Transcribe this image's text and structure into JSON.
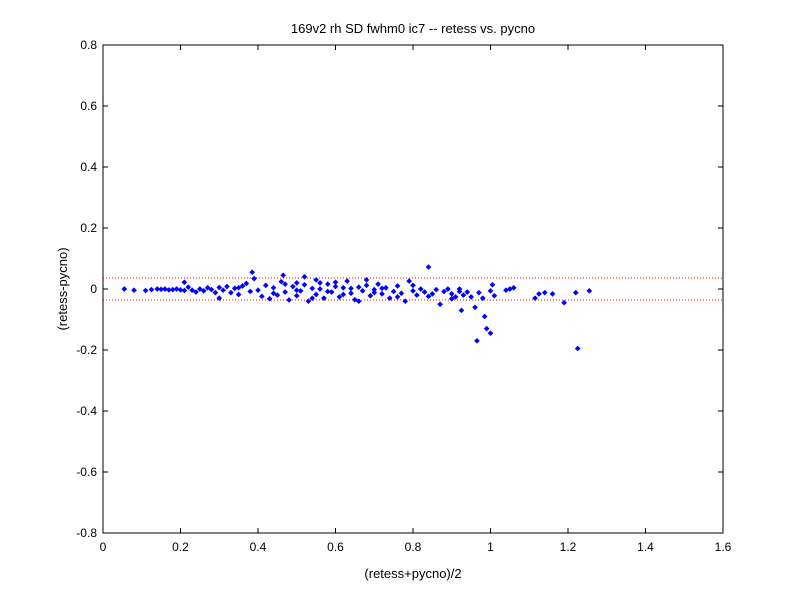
{
  "chart_data": {
    "type": "scatter",
    "title": "169v2 rh SD fwhm0 ic7 -- retess vs. pycno",
    "xlabel": "(retess+pycno)/2",
    "ylabel": "(retess-pycno)",
    "xlim": [
      0,
      1.6
    ],
    "ylim": [
      -0.8,
      0.8
    ],
    "xticks": [
      0,
      0.2,
      0.4,
      0.6,
      0.8,
      1,
      1.2,
      1.4,
      1.6
    ],
    "yticks": [
      -0.8,
      -0.6,
      -0.4,
      -0.2,
      0,
      0.2,
      0.4,
      0.6,
      0.8
    ],
    "xtick_labels": [
      "0",
      "0.2",
      "0.4",
      "0.6",
      "0.8",
      "1",
      "1.2",
      "1.4",
      "1.6"
    ],
    "ytick_labels": [
      "-0.8",
      "-0.6",
      "-0.4",
      "-0.2",
      "0",
      "0.2",
      "0.4",
      "0.6",
      "0.8"
    ],
    "grid": false,
    "marker_color": "#0000ff",
    "reference_lines": [
      {
        "y": 0.036,
        "color": "#ff0000",
        "style": "dotted"
      },
      {
        "y": -0.036,
        "color": "#ff0000",
        "style": "dotted"
      }
    ],
    "points": [
      [
        0.055,
        0.0
      ],
      [
        0.08,
        -0.004
      ],
      [
        0.11,
        -0.005
      ],
      [
        0.125,
        -0.002
      ],
      [
        0.14,
        0.0
      ],
      [
        0.15,
        -0.001
      ],
      [
        0.16,
        0.0
      ],
      [
        0.17,
        -0.003
      ],
      [
        0.18,
        -0.002
      ],
      [
        0.19,
        0.0
      ],
      [
        0.2,
        -0.003
      ],
      [
        0.21,
        -0.005
      ],
      [
        0.21,
        0.022
      ],
      [
        0.22,
        0.006
      ],
      [
        0.23,
        -0.004
      ],
      [
        0.24,
        -0.01
      ],
      [
        0.25,
        0.0
      ],
      [
        0.26,
        -0.006
      ],
      [
        0.27,
        0.004
      ],
      [
        0.28,
        -0.002
      ],
      [
        0.29,
        -0.012
      ],
      [
        0.3,
        0.005
      ],
      [
        0.3,
        -0.03
      ],
      [
        0.31,
        -0.004
      ],
      [
        0.32,
        0.008
      ],
      [
        0.33,
        -0.012
      ],
      [
        0.34,
        0.002
      ],
      [
        0.35,
        -0.018
      ],
      [
        0.36,
        0.01
      ],
      [
        0.37,
        0.018
      ],
      [
        0.38,
        -0.008
      ],
      [
        0.385,
        0.055
      ],
      [
        0.39,
        0.034
      ],
      [
        0.4,
        -0.004
      ],
      [
        0.41,
        -0.024
      ],
      [
        0.42,
        0.012
      ],
      [
        0.43,
        -0.032
      ],
      [
        0.44,
        0.004
      ],
      [
        0.45,
        -0.02
      ],
      [
        0.46,
        0.024
      ],
      [
        0.465,
        0.045
      ],
      [
        0.47,
        -0.01
      ],
      [
        0.48,
        -0.036
      ],
      [
        0.49,
        0.008
      ],
      [
        0.5,
        0.02
      ],
      [
        0.5,
        -0.022
      ],
      [
        0.51,
        -0.006
      ],
      [
        0.52,
        0.014
      ],
      [
        0.53,
        -0.04
      ],
      [
        0.54,
        0.002
      ],
      [
        0.55,
        -0.018
      ],
      [
        0.55,
        0.03
      ],
      [
        0.56,
        0.0
      ],
      [
        0.57,
        -0.03
      ],
      [
        0.58,
        0.016
      ],
      [
        0.59,
        -0.01
      ],
      [
        0.6,
        0.008
      ],
      [
        0.61,
        -0.026
      ],
      [
        0.62,
        0.004
      ],
      [
        0.63,
        0.026
      ],
      [
        0.64,
        -0.014
      ],
      [
        0.65,
        -0.035
      ],
      [
        0.66,
        0.006
      ],
      [
        0.67,
        -0.006
      ],
      [
        0.68,
        0.012
      ],
      [
        0.69,
        -0.022
      ],
      [
        0.7,
        -0.002
      ],
      [
        0.71,
        0.016
      ],
      [
        0.72,
        -0.016
      ],
      [
        0.73,
        0.004
      ],
      [
        0.74,
        -0.03
      ],
      [
        0.75,
        -0.008
      ],
      [
        0.76,
        0.01
      ],
      [
        0.77,
        -0.014
      ],
      [
        0.78,
        -0.04
      ],
      [
        0.79,
        0.026
      ],
      [
        0.8,
        -0.006
      ],
      [
        0.81,
        -0.02
      ],
      [
        0.82,
        0.0
      ],
      [
        0.83,
        -0.01
      ],
      [
        0.84,
        0.072
      ],
      [
        0.85,
        -0.016
      ],
      [
        0.86,
        -0.002
      ],
      [
        0.87,
        -0.05
      ],
      [
        0.88,
        -0.008
      ],
      [
        0.89,
        0.0
      ],
      [
        0.9,
        -0.016
      ],
      [
        0.91,
        -0.026
      ],
      [
        0.92,
        0.0
      ],
      [
        0.925,
        -0.07
      ],
      [
        0.93,
        -0.02
      ],
      [
        0.94,
        -0.01
      ],
      [
        0.95,
        -0.026
      ],
      [
        0.96,
        -0.06
      ],
      [
        0.965,
        -0.17
      ],
      [
        0.97,
        -0.012
      ],
      [
        0.98,
        -0.03
      ],
      [
        0.985,
        -0.09
      ],
      [
        0.99,
        -0.13
      ],
      [
        1.0,
        -0.006
      ],
      [
        1.0,
        -0.145
      ],
      [
        1.005,
        0.014
      ],
      [
        1.01,
        -0.022
      ],
      [
        1.04,
        -0.004
      ],
      [
        1.05,
        0.0
      ],
      [
        1.06,
        0.004
      ],
      [
        1.115,
        -0.03
      ],
      [
        1.125,
        -0.016
      ],
      [
        1.14,
        -0.012
      ],
      [
        1.16,
        -0.016
      ],
      [
        1.19,
        -0.045
      ],
      [
        1.22,
        -0.012
      ],
      [
        1.225,
        -0.195
      ],
      [
        1.255,
        -0.006
      ],
      [
        0.35,
        0.004
      ],
      [
        0.44,
        -0.014
      ],
      [
        0.52,
        0.04
      ],
      [
        0.58,
        -0.008
      ],
      [
        0.62,
        -0.018
      ],
      [
        0.68,
        0.03
      ],
      [
        0.72,
        0.002
      ],
      [
        0.76,
        -0.026
      ],
      [
        0.66,
        -0.04
      ],
      [
        0.47,
        0.016
      ],
      [
        0.54,
        -0.03
      ],
      [
        0.6,
        0.022
      ],
      [
        0.64,
        0.002
      ],
      [
        0.7,
        -0.012
      ],
      [
        0.8,
        0.012
      ],
      [
        0.84,
        -0.024
      ],
      [
        0.9,
        -0.032
      ],
      [
        0.92,
        -0.008
      ],
      [
        0.56,
        0.02
      ],
      [
        0.5,
        -0.004
      ]
    ]
  }
}
